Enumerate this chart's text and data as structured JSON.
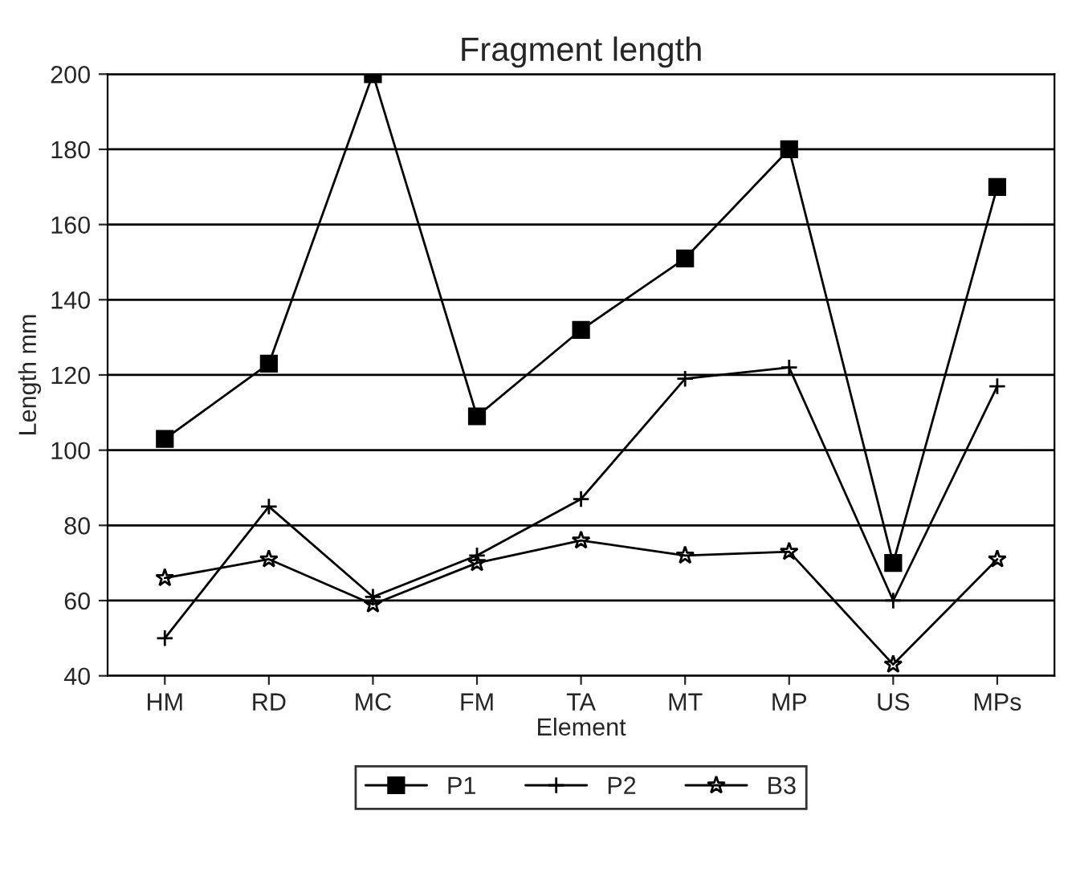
{
  "chart_data": {
    "type": "line",
    "title": "Fragment length",
    "xlabel": "Element",
    "ylabel": "Length mm",
    "categories": [
      "HM",
      "RD",
      "MC",
      "FM",
      "TA",
      "MT",
      "MP",
      "US",
      "MPs"
    ],
    "series": [
      {
        "name": "P1",
        "color": "#000000",
        "marker": "square",
        "values": [
          103,
          123,
          200,
          109,
          132,
          151,
          180,
          70,
          170
        ]
      },
      {
        "name": "P2",
        "color": "#000000",
        "marker": "cross",
        "values": [
          50,
          85,
          61,
          72,
          87,
          119,
          122,
          60,
          117
        ]
      },
      {
        "name": "B3",
        "color": "#000000",
        "marker": "star",
        "values": [
          66,
          71,
          59,
          70,
          76,
          72,
          73,
          43,
          71
        ]
      }
    ],
    "ylim": [
      40,
      200
    ],
    "yticks": [
      40,
      60,
      80,
      100,
      120,
      140,
      160,
      180,
      200
    ],
    "grid": "y",
    "legend": "bottom",
    "line_style": "solid"
  }
}
